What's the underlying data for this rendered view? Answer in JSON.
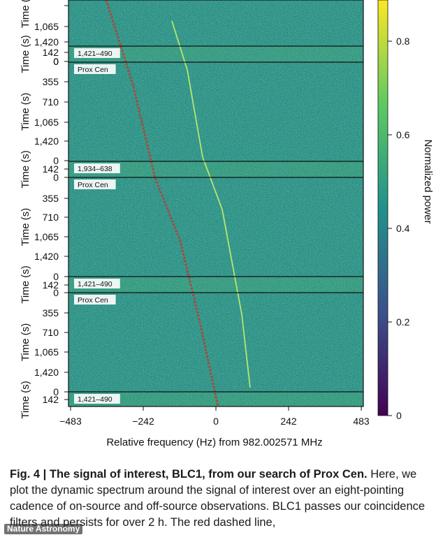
{
  "figure": {
    "panels": [
      {
        "tag": "",
        "y_ticks": [
          "",
          "1,065",
          "1,420",
          "0"
        ]
      },
      {
        "tag": "1,421–490",
        "y_ticks": [
          "142",
          "0"
        ]
      },
      {
        "tag": "Prox Cen",
        "y_ticks": [
          "355",
          "710",
          "1,065",
          "1,420",
          "0"
        ]
      },
      {
        "tag": "1,934–638",
        "y_ticks": [
          "142",
          "0"
        ]
      },
      {
        "tag": "Prox Cen",
        "y_ticks": [
          "355",
          "710",
          "1,065",
          "1,420",
          "0"
        ]
      },
      {
        "tag": "1,421–490",
        "y_ticks": [
          "142",
          "0"
        ]
      },
      {
        "tag": "Prox Cen",
        "y_ticks": [
          "355",
          "710",
          "1,065",
          "1,420",
          "0"
        ]
      },
      {
        "tag": "1,421–490",
        "y_ticks": [
          "142"
        ]
      }
    ],
    "y_axis_label": "Time (s)",
    "x_ticks": [
      "−483",
      "−242",
      "0",
      "242",
      "483"
    ],
    "x_axis_label": "Relative frequency (Hz) from 982.002571 MHz",
    "colorbar": {
      "label": "Normalized power",
      "ticks": [
        "0",
        "0.2",
        "0.4",
        "0.6",
        "0.8"
      ],
      "colormap": [
        "#440154",
        "#3b528b",
        "#21918c",
        "#5ec962",
        "#fde725"
      ]
    },
    "colors": {
      "drift_line": "#c0392b",
      "signal": "#c8ec6a",
      "background": "#2a8f88"
    }
  },
  "caption": {
    "lead": "Fig. 4 | The signal of interest, BLC1, from our search of Prox Cen.",
    "body": " Here, we plot the dynamic spectrum around the signal of interest over an eight-pointing cadence of on-source and off-source observations. BLC1 passes our coincidence filters and persists for over 2 h. The red dashed line,"
  },
  "watermark": "Nature Astronomy"
}
